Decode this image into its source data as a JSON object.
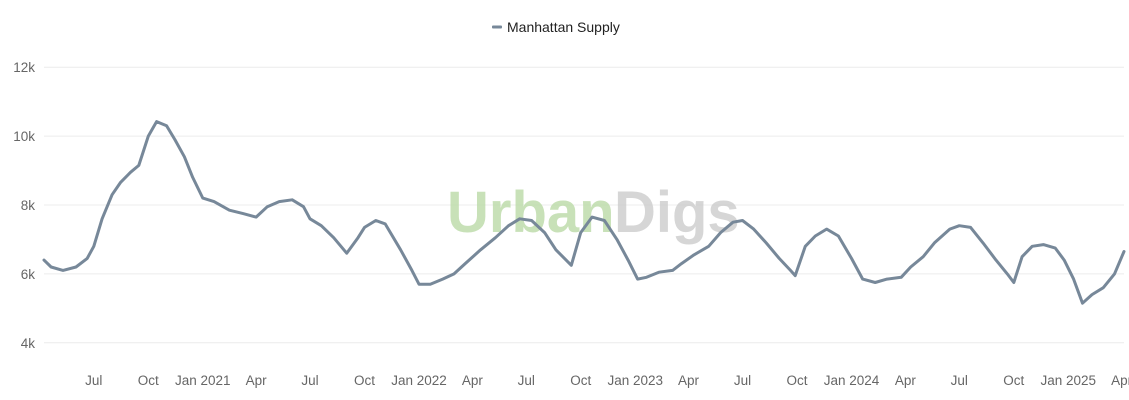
{
  "legend": {
    "label": "Manhattan Supply"
  },
  "watermark": {
    "part1": "Urban",
    "part2": "Digs"
  },
  "colors": {
    "series": "#778899",
    "grid": "#ececec",
    "brand_green": "#bfdcac",
    "brand_gray": "#cfcfcf"
  },
  "chart_data": {
    "type": "line",
    "title": "",
    "xlabel": "",
    "ylabel": "",
    "ylim": [
      3500,
      12500
    ],
    "yticks": [
      {
        "value": 4000,
        "label": "4k"
      },
      {
        "value": 6000,
        "label": "6k"
      },
      {
        "value": 8000,
        "label": "8k"
      },
      {
        "value": 10000,
        "label": "10k"
      },
      {
        "value": 12000,
        "label": "12k"
      }
    ],
    "xlim": [
      "2020-04-08",
      "2025-04-05"
    ],
    "xticks": [
      {
        "date": "2020-07-01",
        "label": "Jul"
      },
      {
        "date": "2020-10-01",
        "label": "Oct"
      },
      {
        "date": "2021-01-01",
        "label": "Jan 2021"
      },
      {
        "date": "2021-04-01",
        "label": "Apr"
      },
      {
        "date": "2021-07-01",
        "label": "Jul"
      },
      {
        "date": "2021-10-01",
        "label": "Oct"
      },
      {
        "date": "2022-01-01",
        "label": "Jan 2022"
      },
      {
        "date": "2022-04-01",
        "label": "Apr"
      },
      {
        "date": "2022-07-01",
        "label": "Jul"
      },
      {
        "date": "2022-10-01",
        "label": "Oct"
      },
      {
        "date": "2023-01-01",
        "label": "Jan 2023"
      },
      {
        "date": "2023-04-01",
        "label": "Apr"
      },
      {
        "date": "2023-07-01",
        "label": "Jul"
      },
      {
        "date": "2023-10-01",
        "label": "Oct"
      },
      {
        "date": "2024-01-01",
        "label": "Jan 2024"
      },
      {
        "date": "2024-04-01",
        "label": "Apr"
      },
      {
        "date": "2024-07-01",
        "label": "Jul"
      },
      {
        "date": "2024-10-01",
        "label": "Oct"
      },
      {
        "date": "2025-01-01",
        "label": "Jan 2025"
      },
      {
        "date": "2025-04-01",
        "label": "Apr"
      }
    ],
    "grid": true,
    "legend_position": "top-center",
    "series": [
      {
        "name": "Manhattan Supply",
        "points": [
          [
            "2020-04-08",
            6400
          ],
          [
            "2020-04-20",
            6200
          ],
          [
            "2020-05-10",
            6100
          ],
          [
            "2020-06-01",
            6200
          ],
          [
            "2020-06-20",
            6450
          ],
          [
            "2020-07-01",
            6800
          ],
          [
            "2020-07-15",
            7600
          ],
          [
            "2020-08-01",
            8300
          ],
          [
            "2020-08-15",
            8650
          ],
          [
            "2020-09-01",
            8950
          ],
          [
            "2020-09-15",
            9150
          ],
          [
            "2020-10-01",
            10000
          ],
          [
            "2020-10-15",
            10420
          ],
          [
            "2020-11-01",
            10300
          ],
          [
            "2020-11-15",
            9900
          ],
          [
            "2020-12-01",
            9400
          ],
          [
            "2020-12-15",
            8800
          ],
          [
            "2021-01-01",
            8200
          ],
          [
            "2021-01-20",
            8100
          ],
          [
            "2021-02-15",
            7850
          ],
          [
            "2021-03-10",
            7750
          ],
          [
            "2021-04-01",
            7650
          ],
          [
            "2021-04-20",
            7950
          ],
          [
            "2021-05-10",
            8100
          ],
          [
            "2021-06-01",
            8150
          ],
          [
            "2021-06-20",
            7950
          ],
          [
            "2021-07-01",
            7600
          ],
          [
            "2021-07-20",
            7400
          ],
          [
            "2021-08-10",
            7050
          ],
          [
            "2021-09-01",
            6600
          ],
          [
            "2021-09-20",
            7050
          ],
          [
            "2021-10-01",
            7350
          ],
          [
            "2021-10-20",
            7550
          ],
          [
            "2021-11-05",
            7450
          ],
          [
            "2021-12-01",
            6700
          ],
          [
            "2021-12-20",
            6100
          ],
          [
            "2022-01-01",
            5700
          ],
          [
            "2022-01-20",
            5700
          ],
          [
            "2022-02-10",
            5850
          ],
          [
            "2022-03-01",
            6000
          ],
          [
            "2022-03-20",
            6300
          ],
          [
            "2022-04-15",
            6700
          ],
          [
            "2022-05-10",
            7050
          ],
          [
            "2022-06-01",
            7400
          ],
          [
            "2022-06-20",
            7600
          ],
          [
            "2022-07-10",
            7550
          ],
          [
            "2022-08-01",
            7200
          ],
          [
            "2022-08-20",
            6700
          ],
          [
            "2022-09-15",
            6250
          ],
          [
            "2022-10-01",
            7200
          ],
          [
            "2022-10-20",
            7650
          ],
          [
            "2022-11-10",
            7550
          ],
          [
            "2022-12-01",
            7000
          ],
          [
            "2022-12-20",
            6400
          ],
          [
            "2023-01-05",
            5850
          ],
          [
            "2023-01-20",
            5900
          ],
          [
            "2023-02-10",
            6050
          ],
          [
            "2023-03-05",
            6100
          ],
          [
            "2023-03-20",
            6300
          ],
          [
            "2023-04-10",
            6550
          ],
          [
            "2023-05-05",
            6800
          ],
          [
            "2023-05-25",
            7200
          ],
          [
            "2023-06-15",
            7500
          ],
          [
            "2023-07-01",
            7550
          ],
          [
            "2023-07-20",
            7300
          ],
          [
            "2023-08-10",
            6900
          ],
          [
            "2023-09-01",
            6450
          ],
          [
            "2023-09-20",
            6100
          ],
          [
            "2023-09-28",
            5950
          ],
          [
            "2023-10-15",
            6800
          ],
          [
            "2023-11-01",
            7100
          ],
          [
            "2023-11-20",
            7300
          ],
          [
            "2023-12-10",
            7100
          ],
          [
            "2024-01-01",
            6450
          ],
          [
            "2024-01-20",
            5850
          ],
          [
            "2024-02-10",
            5750
          ],
          [
            "2024-03-01",
            5850
          ],
          [
            "2024-03-25",
            5900
          ],
          [
            "2024-04-10",
            6200
          ],
          [
            "2024-05-01",
            6500
          ],
          [
            "2024-05-20",
            6900
          ],
          [
            "2024-06-15",
            7300
          ],
          [
            "2024-07-01",
            7400
          ],
          [
            "2024-07-20",
            7350
          ],
          [
            "2024-08-10",
            6900
          ],
          [
            "2024-09-01",
            6400
          ],
          [
            "2024-09-20",
            6000
          ],
          [
            "2024-10-01",
            5750
          ],
          [
            "2024-10-15",
            6500
          ],
          [
            "2024-11-01",
            6800
          ],
          [
            "2024-11-20",
            6850
          ],
          [
            "2024-12-10",
            6750
          ],
          [
            "2024-12-25",
            6400
          ],
          [
            "2025-01-10",
            5850
          ],
          [
            "2025-01-25",
            5150
          ],
          [
            "2025-02-10",
            5400
          ],
          [
            "2025-03-01",
            5600
          ],
          [
            "2025-03-20",
            6000
          ],
          [
            "2025-04-05",
            6650
          ]
        ]
      }
    ]
  }
}
